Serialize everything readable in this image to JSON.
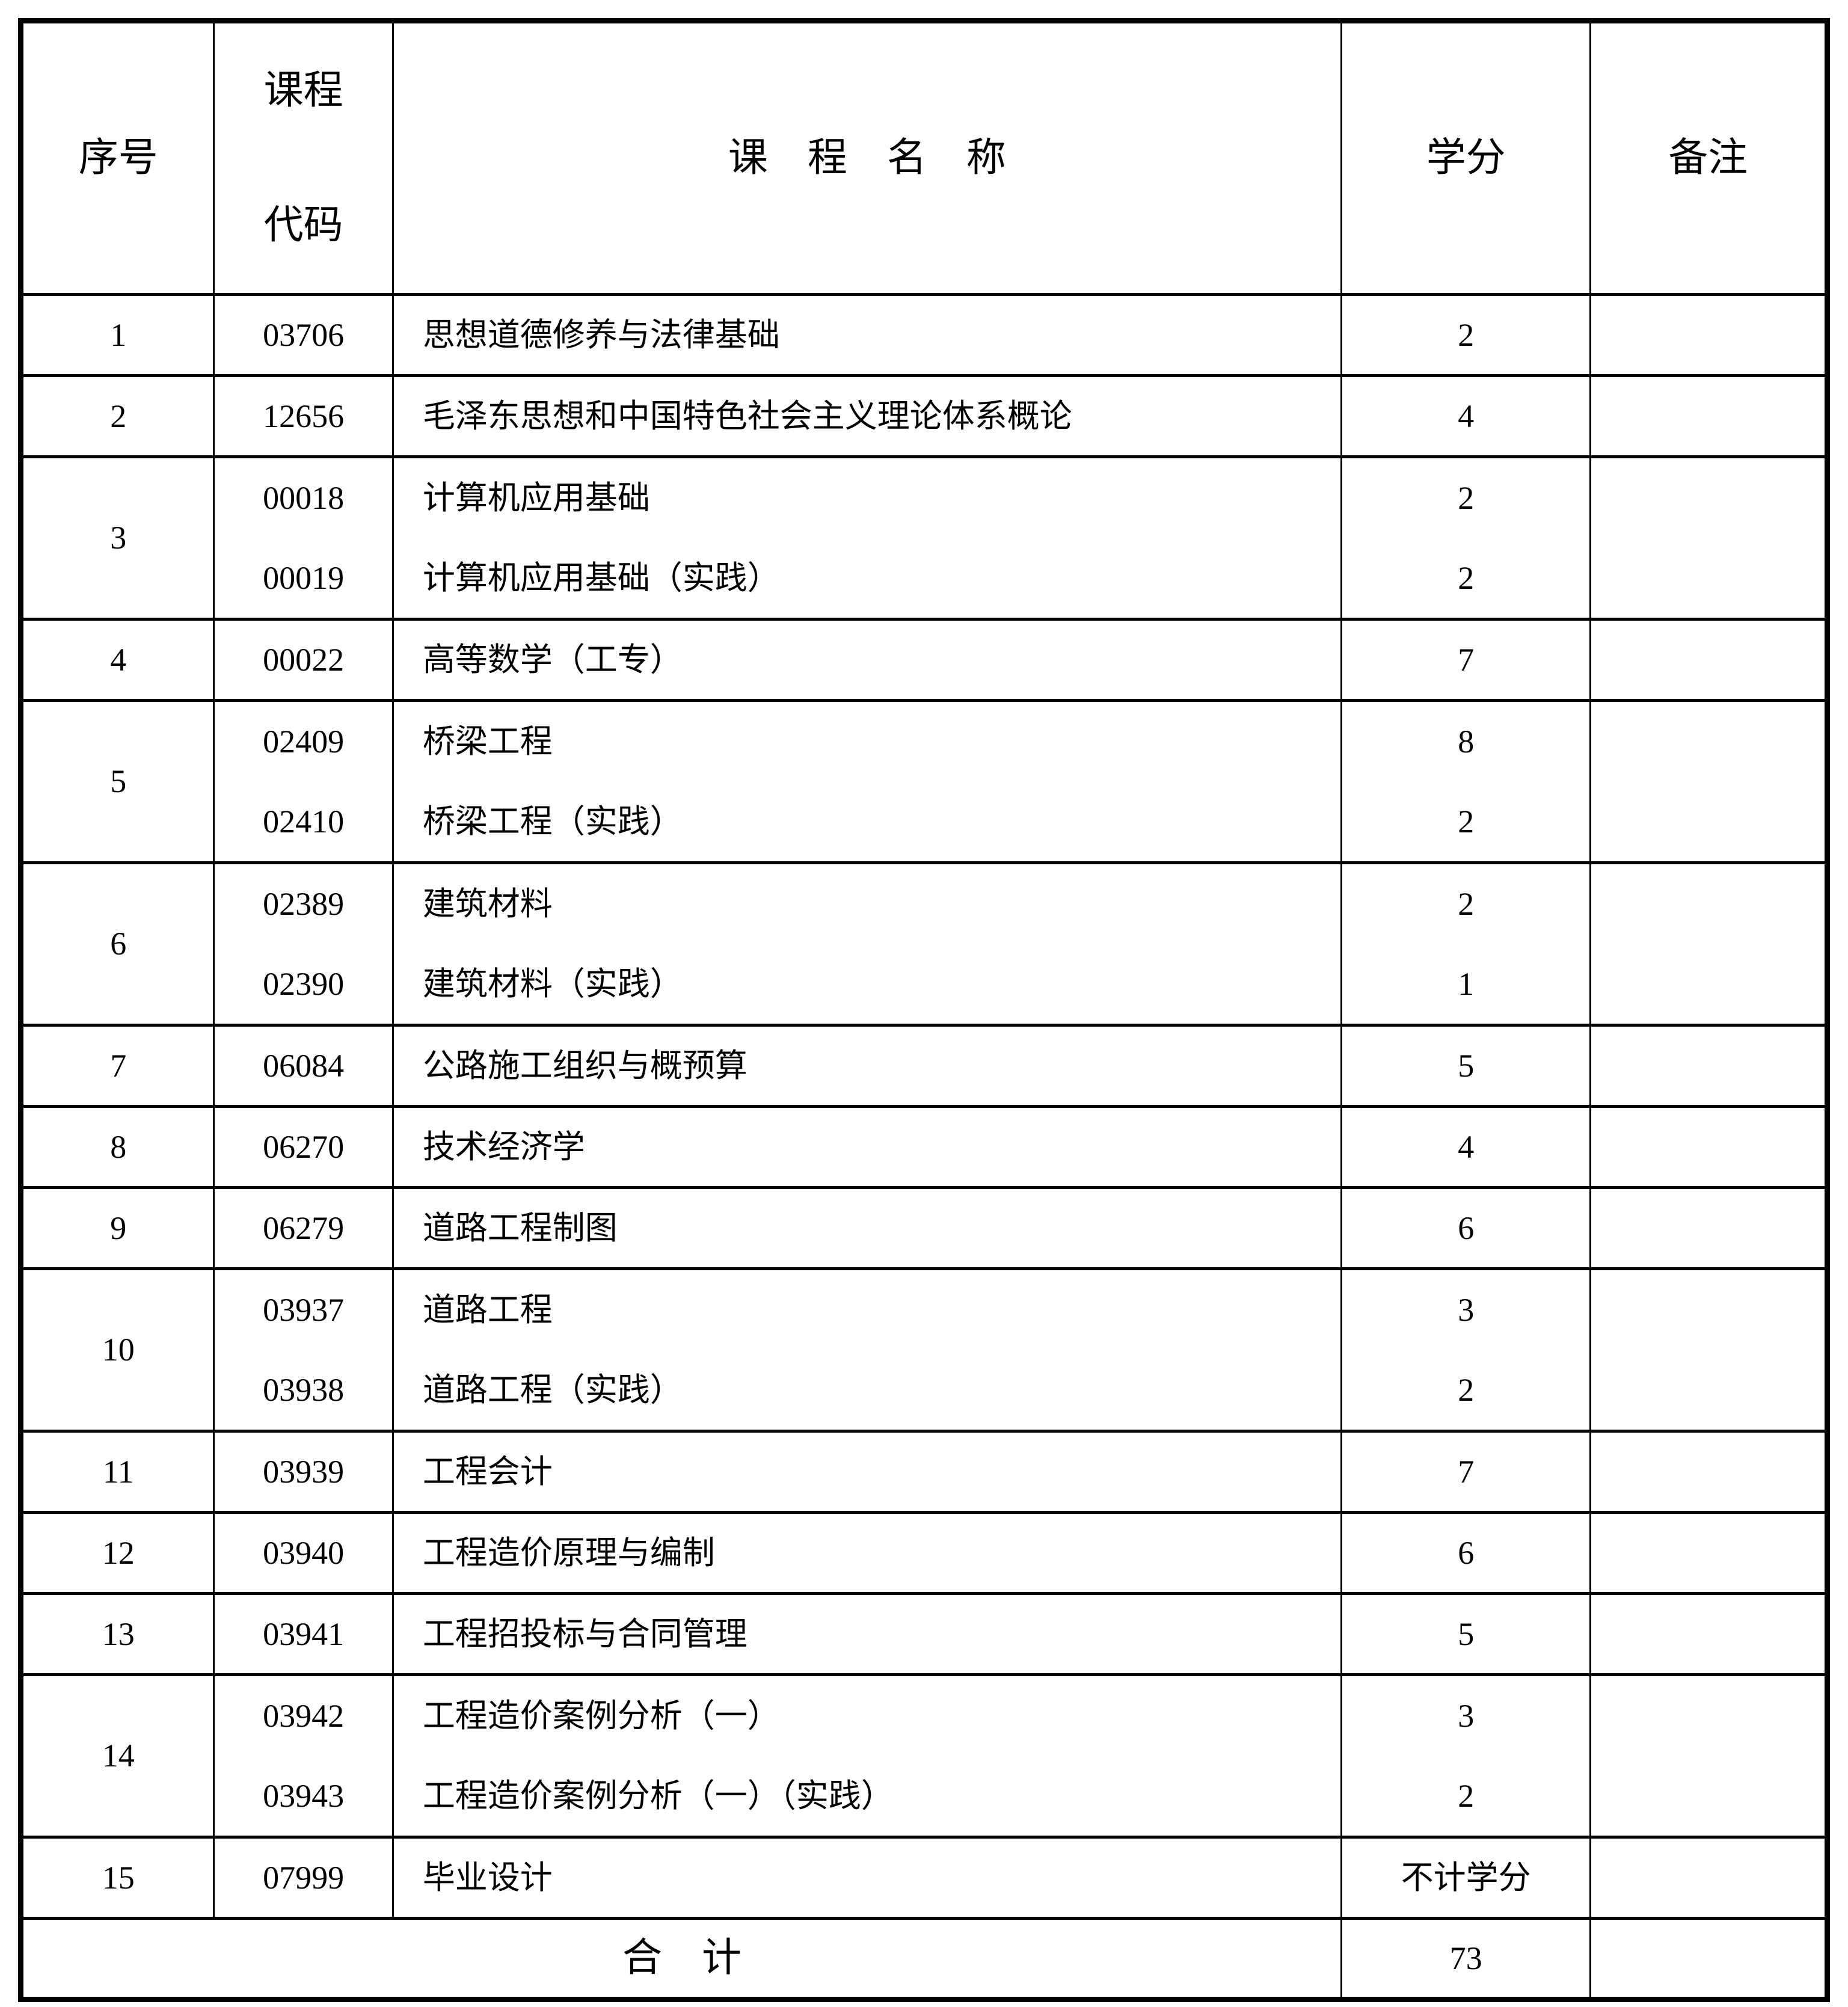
{
  "document": {
    "type": "course-credit-table"
  },
  "header": {
    "col_index": "序号",
    "col_code_line1": "课程",
    "col_code_line2": "代码",
    "col_name": "课　程　名　称",
    "col_credits": "学分",
    "col_remarks": "备注"
  },
  "rows": [
    {
      "index": "1",
      "courses": [
        {
          "code": "03706",
          "name": "思想道德修养与法律基础",
          "credits": "2"
        }
      ],
      "remark": ""
    },
    {
      "index": "2",
      "courses": [
        {
          "code": "12656",
          "name": "毛泽东思想和中国特色社会主义理论体系概论",
          "credits": "4"
        }
      ],
      "remark": ""
    },
    {
      "index": "3",
      "courses": [
        {
          "code": "00018",
          "name": "计算机应用基础",
          "credits": "2"
        },
        {
          "code": "00019",
          "name": "计算机应用基础（实践）",
          "credits": "2"
        }
      ],
      "remark": ""
    },
    {
      "index": "4",
      "courses": [
        {
          "code": "00022",
          "name": "高等数学（工专）",
          "credits": "7"
        }
      ],
      "remark": ""
    },
    {
      "index": "5",
      "courses": [
        {
          "code": "02409",
          "name": "桥梁工程",
          "credits": "8"
        },
        {
          "code": "02410",
          "name": "桥梁工程（实践）",
          "credits": "2"
        }
      ],
      "remark": ""
    },
    {
      "index": "6",
      "courses": [
        {
          "code": "02389",
          "name": "建筑材料",
          "credits": "2"
        },
        {
          "code": "02390",
          "name": "建筑材料（实践）",
          "credits": "1"
        }
      ],
      "remark": ""
    },
    {
      "index": "7",
      "courses": [
        {
          "code": "06084",
          "name": "公路施工组织与概预算",
          "credits": "5"
        }
      ],
      "remark": ""
    },
    {
      "index": "8",
      "courses": [
        {
          "code": "06270",
          "name": "技术经济学",
          "credits": "4"
        }
      ],
      "remark": ""
    },
    {
      "index": "9",
      "courses": [
        {
          "code": "06279",
          "name": "道路工程制图",
          "credits": "6"
        }
      ],
      "remark": ""
    },
    {
      "index": "10",
      "courses": [
        {
          "code": "03937",
          "name": "道路工程",
          "credits": "3"
        },
        {
          "code": "03938",
          "name": "道路工程（实践）",
          "credits": "2"
        }
      ],
      "remark": ""
    },
    {
      "index": "11",
      "courses": [
        {
          "code": "03939",
          "name": "工程会计",
          "credits": "7"
        }
      ],
      "remark": ""
    },
    {
      "index": "12",
      "courses": [
        {
          "code": "03940",
          "name": "工程造价原理与编制",
          "credits": "6"
        }
      ],
      "remark": ""
    },
    {
      "index": "13",
      "courses": [
        {
          "code": "03941",
          "name": "工程招投标与合同管理",
          "credits": "5"
        }
      ],
      "remark": ""
    },
    {
      "index": "14",
      "courses": [
        {
          "code": "03942",
          "name": "工程造价案例分析（一）",
          "credits": "3"
        },
        {
          "code": "03943",
          "name": "工程造价案例分析（一）（实践）",
          "credits": "2"
        }
      ],
      "remark": ""
    },
    {
      "index": "15",
      "courses": [
        {
          "code": "07999",
          "name": "毕业设计",
          "credits": "不计学分"
        }
      ],
      "remark": ""
    }
  ],
  "footer": {
    "total_label": "合　计",
    "total_credits": "73",
    "remark": ""
  }
}
